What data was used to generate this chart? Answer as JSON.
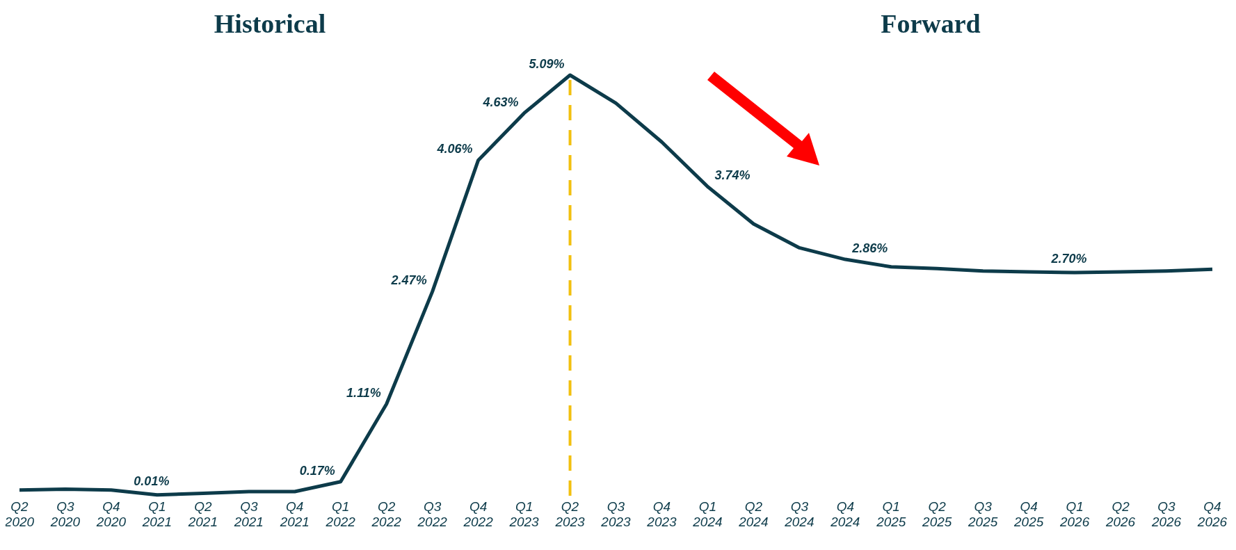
{
  "chart_data": {
    "type": "line",
    "categories": [
      "Q2 2020",
      "Q3 2020",
      "Q4 2020",
      "Q1 2021",
      "Q2 2021",
      "Q3 2021",
      "Q4 2021",
      "Q1 2022",
      "Q2 2022",
      "Q3 2022",
      "Q4 2022",
      "Q1 2023",
      "Q2 2023",
      "Q3 2023",
      "Q4 2023",
      "Q1 2024",
      "Q2 2024",
      "Q3 2024",
      "Q4 2024",
      "Q1 2025",
      "Q2 2025",
      "Q3 2025",
      "Q4 2025",
      "Q1 2026",
      "Q2 2026",
      "Q3 2026",
      "Q4 2026"
    ],
    "values": [
      0.07,
      0.08,
      0.07,
      0.01,
      0.03,
      0.05,
      0.05,
      0.17,
      1.11,
      2.47,
      4.06,
      4.63,
      5.09,
      4.75,
      4.28,
      3.74,
      3.29,
      3.0,
      2.86,
      2.77,
      2.75,
      2.72,
      2.71,
      2.7,
      2.71,
      2.72,
      2.74
    ],
    "value_labels": [
      null,
      null,
      null,
      "0.01%",
      null,
      null,
      null,
      "0.17%",
      "1.11%",
      "2.47%",
      "4.06%",
      "4.63%",
      "5.09%",
      null,
      null,
      "3.74%",
      null,
      null,
      "2.86%",
      null,
      null,
      null,
      null,
      "2.70%",
      null,
      null,
      null
    ],
    "color": "#0d3b4a",
    "marker": "none",
    "line_style": "solid",
    "ref_lines": [
      {
        "axis": "x",
        "value": "Q2 2023",
        "color": "#f2c00f",
        "line_style": "dashed"
      }
    ],
    "annotations": [
      "Historical",
      "Forward"
    ]
  }
}
